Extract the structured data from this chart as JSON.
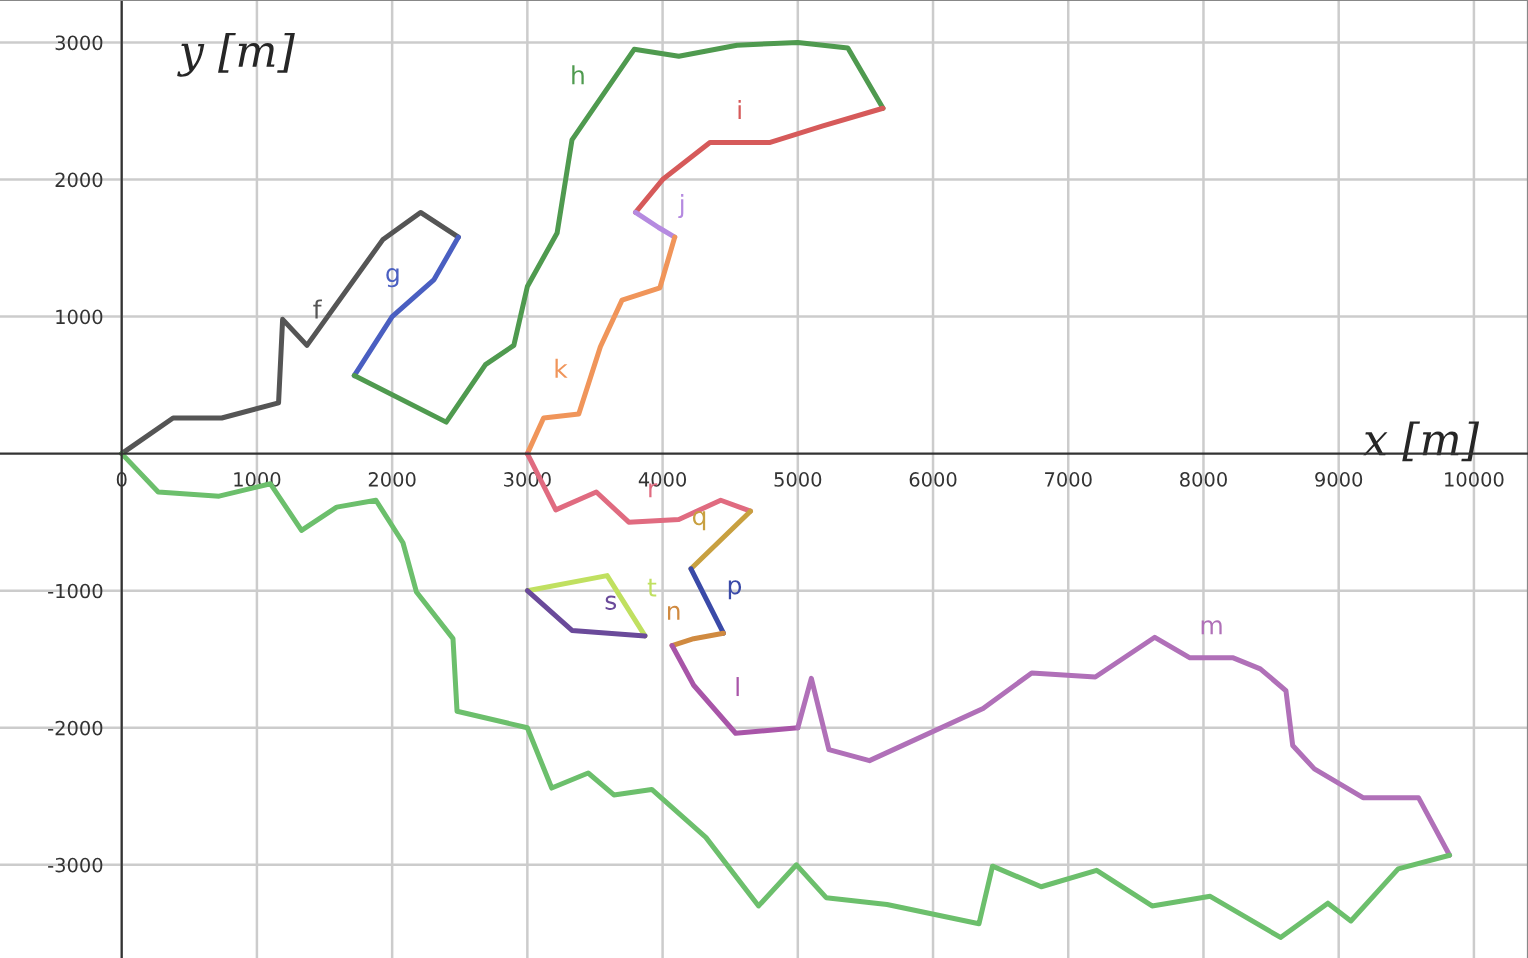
{
  "chart_data": {
    "type": "line",
    "xlabel": "x [m]",
    "ylabel": "y [m]",
    "xlim": [
      -900,
      10400
    ],
    "ylim": [
      -3680,
      3310
    ],
    "xticks": [
      0,
      1000,
      2000,
      3000,
      4000,
      5000,
      6000,
      7000,
      8000,
      9000,
      10000
    ],
    "yticks": [
      -3000,
      -2000,
      -1000,
      1000,
      2000,
      3000
    ],
    "grid": true,
    "legend": false,
    "marker": "none",
    "line_style": "solid",
    "series": [
      {
        "name": "f",
        "color": "#555555",
        "x": [
          0,
          380,
          740,
          1160,
          1190,
          1370,
          1930,
          2210,
          2490
        ],
        "values": [
          0,
          260,
          260,
          370,
          980,
          790,
          1560,
          1760,
          1580
        ]
      },
      {
        "name": "g",
        "color": "#4a5fc1",
        "x": [
          2490,
          2310,
          2000,
          1720
        ],
        "values": [
          1580,
          1270,
          1000,
          570
        ]
      },
      {
        "name": "h",
        "color": "#4f9a4f",
        "x": [
          1720,
          2400,
          2690,
          2900,
          3000,
          3220,
          3330,
          3790,
          4120,
          4550,
          5000,
          5370,
          5630
        ],
        "values": [
          570,
          230,
          650,
          790,
          1220,
          1610,
          2290,
          2950,
          2900,
          2980,
          3000,
          2960,
          2520
        ]
      },
      {
        "name": "i",
        "color": "#d65a5a",
        "x": [
          5630,
          5180,
          4790,
          4350,
          4000,
          3800
        ],
        "values": [
          2520,
          2390,
          2270,
          2270,
          2000,
          1760
        ]
      },
      {
        "name": "j",
        "color": "#b58ae0",
        "x": [
          3800,
          3970,
          4090
        ],
        "values": [
          1760,
          1650,
          1580
        ]
      },
      {
        "name": "k",
        "color": "#f0955a",
        "x": [
          4090,
          3980,
          3700,
          3540,
          3380,
          3120,
          3000
        ],
        "values": [
          1580,
          1210,
          1120,
          780,
          290,
          260,
          0
        ]
      },
      {
        "name": "r",
        "color": "#e06b80",
        "x": [
          3000,
          3210,
          3510,
          3750,
          4120,
          4430,
          4650
        ],
        "values": [
          0,
          -410,
          -280,
          -500,
          -480,
          -340,
          -420
        ]
      },
      {
        "name": "q",
        "color": "#c8a040",
        "x": [
          4650,
          4210
        ],
        "values": [
          -420,
          -840
        ]
      },
      {
        "name": "p",
        "color": "#3a4aa8",
        "x": [
          4210,
          4450
        ],
        "values": [
          -840,
          -1310
        ]
      },
      {
        "name": "n",
        "color": "#d08a40",
        "x": [
          4450,
          4230,
          4070
        ],
        "values": [
          -1310,
          -1350,
          -1400
        ]
      },
      {
        "name": "l",
        "color": "#a855a8",
        "x": [
          4070,
          4230,
          4540,
          5000
        ],
        "values": [
          -1400,
          -1690,
          -2040,
          -2000
        ]
      },
      {
        "name": "m",
        "color": "#b070b8",
        "x": [
          5000,
          5100,
          5230,
          5530,
          6370,
          6730,
          7200,
          7640,
          7900,
          8220,
          8420,
          8610,
          8660,
          8820,
          9180,
          9590,
          9820
        ],
        "values": [
          -2000,
          -1640,
          -2160,
          -2240,
          -1860,
          -1600,
          -1630,
          -1340,
          -1490,
          -1490,
          -1570,
          -1730,
          -2130,
          -2300,
          -2510,
          -2510,
          -2930
        ]
      },
      {
        "name": "t",
        "color": "#c0e060",
        "x": [
          3000,
          3590,
          3870
        ],
        "values": [
          -1000,
          -890,
          -1330
        ]
      },
      {
        "name": "s",
        "color": "#6a4a9a",
        "x": [
          3000,
          3330,
          3870
        ],
        "values": [
          -1000,
          -1290,
          -1330
        ]
      },
      {
        "color": "#6cbf6c",
        "x": [
          0,
          270,
          720,
          1100,
          1330,
          1590,
          1880,
          2080,
          2180,
          2450,
          2480,
          3000,
          3180,
          3450,
          3640,
          3920,
          4320,
          4710,
          4990,
          5210,
          5660,
          6340,
          6440,
          6800,
          7210,
          7620,
          8050,
          8570,
          8920,
          9090,
          9440,
          9820
        ],
        "values": [
          0,
          -280,
          -310,
          -220,
          -560,
          -390,
          -340,
          -650,
          -1010,
          -1350,
          -1880,
          -2000,
          -2440,
          -2330,
          -2490,
          -2450,
          -2800,
          -3300,
          -3000,
          -3240,
          -3290,
          -3430,
          -3010,
          -3160,
          -3040,
          -3300,
          -3230,
          -3530,
          -3280,
          -3410,
          -3030,
          -2930
        ]
      }
    ]
  }
}
